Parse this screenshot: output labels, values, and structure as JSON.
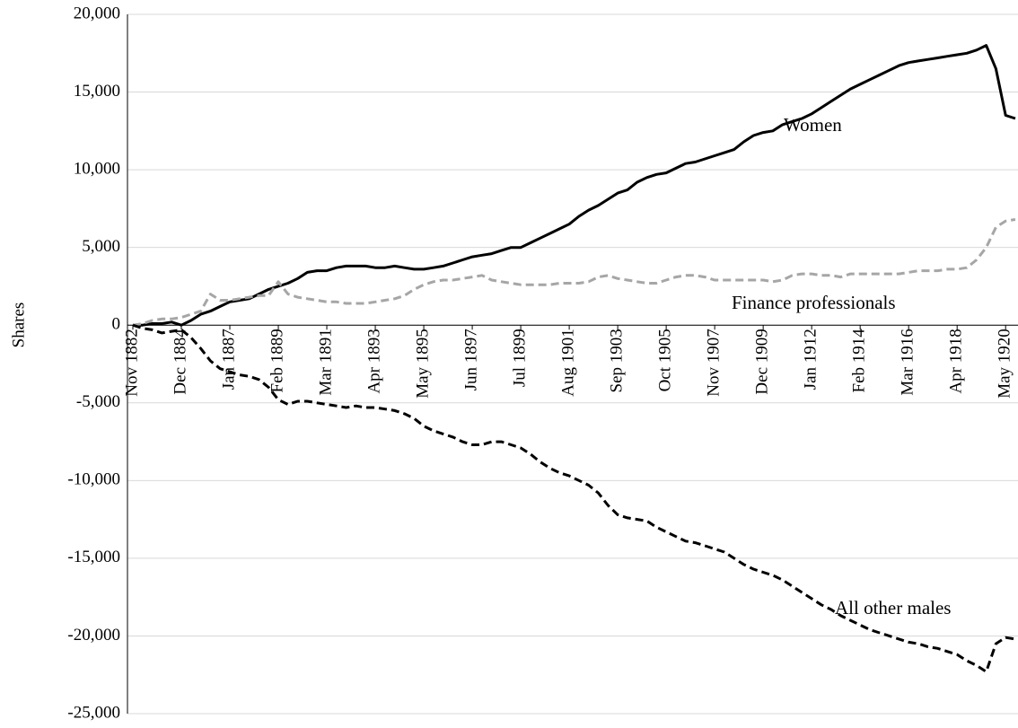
{
  "chart_data": {
    "type": "line",
    "y_label": "Shares",
    "categories": [
      "Nov 1882",
      null,
      null,
      null,
      null,
      "Dec 1884",
      null,
      null,
      null,
      null,
      "Jan 1887",
      null,
      null,
      null,
      null,
      "Feb 1889",
      null,
      null,
      null,
      null,
      "Mar 1891",
      null,
      null,
      null,
      null,
      "Apr 1893",
      null,
      null,
      null,
      null,
      "May 1895",
      null,
      null,
      null,
      null,
      "Jun 1897",
      null,
      null,
      null,
      null,
      "Jul 1899",
      null,
      null,
      null,
      null,
      "Aug 1901",
      null,
      null,
      null,
      null,
      "Sep 1903",
      null,
      null,
      null,
      null,
      "Oct 1905",
      null,
      null,
      null,
      null,
      "Nov 1907",
      null,
      null,
      null,
      null,
      "Dec 1909",
      null,
      null,
      null,
      null,
      "Jan 1912",
      null,
      null,
      null,
      null,
      "Feb 1914",
      null,
      null,
      null,
      null,
      "Mar 1916",
      null,
      null,
      null,
      null,
      "Apr 1918",
      null,
      null,
      null,
      null,
      "May 1920",
      null
    ],
    "series": [
      {
        "name": "Women",
        "color": "#000000",
        "line_style": "solid",
        "values": [
          0,
          0,
          100,
          100,
          200,
          0,
          300,
          700,
          900,
          1200,
          1500,
          1600,
          1700,
          2000,
          2300,
          2500,
          2700,
          3000,
          3400,
          3500,
          3500,
          3700,
          3800,
          3800,
          3800,
          3700,
          3700,
          3800,
          3700,
          3600,
          3600,
          3700,
          3800,
          4000,
          4200,
          4400,
          4500,
          4600,
          4800,
          5000,
          5000,
          5300,
          5600,
          5900,
          6200,
          6500,
          7000,
          7400,
          7700,
          8100,
          8500,
          8700,
          9200,
          9500,
          9700,
          9800,
          10100,
          10400,
          10500,
          10700,
          10900,
          11100,
          11300,
          11800,
          12200,
          12400,
          12500,
          12900,
          13100,
          13300,
          13600,
          14000,
          14400,
          14800,
          15200,
          15500,
          15800,
          16100,
          16400,
          16700,
          16900,
          17000,
          17100,
          17200,
          17300,
          17400,
          17500,
          17700,
          18000,
          16500,
          13500,
          13300
        ]
      },
      {
        "name": "Finance professionals",
        "color": "#a6a6a6",
        "line_style": "dashed",
        "values": [
          0,
          100,
          300,
          400,
          400,
          500,
          700,
          900,
          2000,
          1600,
          1600,
          1700,
          1800,
          1900,
          1900,
          2800,
          2000,
          1800,
          1700,
          1600,
          1500,
          1500,
          1400,
          1400,
          1400,
          1500,
          1600,
          1700,
          1900,
          2300,
          2600,
          2800,
          2900,
          2900,
          3000,
          3100,
          3200,
          2900,
          2800,
          2700,
          2600,
          2600,
          2600,
          2600,
          2700,
          2700,
          2700,
          2800,
          3100,
          3200,
          3000,
          2900,
          2800,
          2700,
          2700,
          2900,
          3100,
          3200,
          3200,
          3100,
          2900,
          2900,
          2900,
          2900,
          2900,
          2900,
          2800,
          2900,
          3200,
          3300,
          3300,
          3200,
          3200,
          3100,
          3300,
          3300,
          3300,
          3300,
          3300,
          3300,
          3400,
          3500,
          3500,
          3500,
          3600,
          3600,
          3700,
          4200,
          5000,
          6300,
          6700,
          6800
        ]
      },
      {
        "name": "All other males",
        "color": "#000000",
        "line_style": "dashed",
        "values": [
          0,
          -200,
          -300,
          -500,
          -400,
          -300,
          -800,
          -1500,
          -2300,
          -2800,
          -3000,
          -3200,
          -3300,
          -3500,
          -4000,
          -4800,
          -5100,
          -4900,
          -4900,
          -5000,
          -5100,
          -5200,
          -5300,
          -5200,
          -5300,
          -5300,
          -5400,
          -5500,
          -5700,
          -6000,
          -6500,
          -6800,
          -7000,
          -7200,
          -7500,
          -7700,
          -7700,
          -7500,
          -7500,
          -7700,
          -7900,
          -8300,
          -8800,
          -9200,
          -9500,
          -9700,
          -10000,
          -10300,
          -10800,
          -11600,
          -12200,
          -12400,
          -12500,
          -12600,
          -13000,
          -13300,
          -13600,
          -13900,
          -14000,
          -14200,
          -14400,
          -14600,
          -15000,
          -15400,
          -15700,
          -15900,
          -16100,
          -16400,
          -16800,
          -17200,
          -17600,
          -18000,
          -18300,
          -18700,
          -19000,
          -19300,
          -19600,
          -19800,
          -20000,
          -20200,
          -20400,
          -20500,
          -20700,
          -20800,
          -21000,
          -21200,
          -21600,
          -21900,
          -22300,
          -20500,
          -20100,
          -20200
        ]
      }
    ],
    "ylim": [
      -25000,
      20000
    ],
    "yticks": [
      {
        "value": -25000,
        "label": "-25,000"
      },
      {
        "value": -20000,
        "label": "-20,000"
      },
      {
        "value": -15000,
        "label": "-15,000"
      },
      {
        "value": -10000,
        "label": "-10,000"
      },
      {
        "value": -5000,
        "label": "-5,000"
      },
      0,
      {
        "value": 5000,
        "label": "5,000"
      },
      {
        "value": 10000,
        "label": "10,000"
      },
      {
        "value": 15000,
        "label": "15,000"
      },
      {
        "value": 20000,
        "label": "20,000"
      }
    ],
    "grid": true
  }
}
